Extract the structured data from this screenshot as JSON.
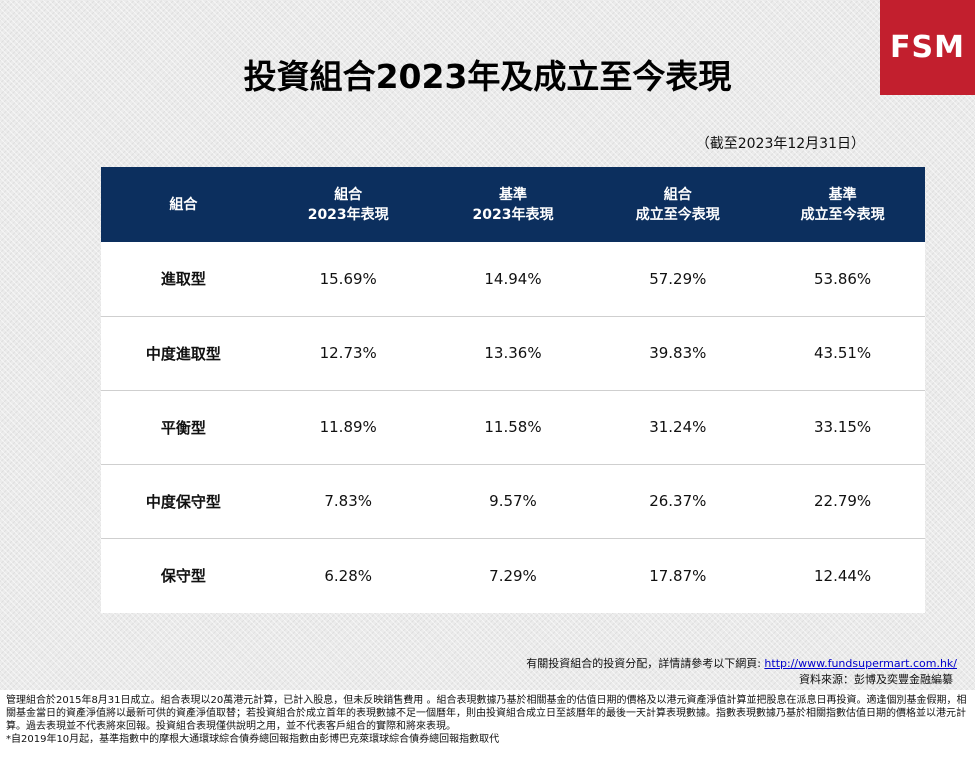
{
  "logo": "FSM",
  "title": "投資組合2023年及成立至今表現",
  "as_of": "（截至2023年12月31日）",
  "table": {
    "headers": [
      [
        "組合"
      ],
      [
        "組合",
        "2023年表現"
      ],
      [
        "基準",
        "2023年表現"
      ],
      [
        "組合",
        "成立至今表現"
      ],
      [
        "基準",
        "成立至今表現"
      ]
    ],
    "rows": [
      [
        "進取型",
        "15.69%",
        "14.94%",
        "57.29%",
        "53.86%"
      ],
      [
        "中度進取型",
        "12.73%",
        "13.36%",
        "39.83%",
        "43.51%"
      ],
      [
        "平衡型",
        "11.89%",
        "11.58%",
        "31.24%",
        "33.15%"
      ],
      [
        "中度保守型",
        "7.83%",
        "9.57%",
        "26.37%",
        "22.79%"
      ],
      [
        "保守型",
        "6.28%",
        "7.29%",
        "17.87%",
        "12.44%"
      ]
    ]
  },
  "reference": {
    "text": "有關投資組合的投資分配，詳情請參考以下網頁: ",
    "link": "http://www.fundsupermart.com.hk/"
  },
  "source": "資料來源：彭博及奕豐金融編纂",
  "footnotes": [
    "管理組合於2015年8月31日成立。組合表現以20萬港元計算，已計入股息，但未反映銷售費用 。組合表現數據乃基於相關基金的估值日期的價格及以港元資產淨值計算並把股息在派息日再投資。適逢個別基金假期，相關基金當日的資產淨值將以最新可供的資產淨值取替；若投資組合於成立首年的表現數據不足一個曆年，則由投資組合成立日至該曆年的最後一天計算表現數據。指數表現數據乃基於相關指數估值日期的價格並以港元計算。過去表現並不代表將來回報。投資組合表現僅供說明之用，並不代表客戶組合的實際和將來表現。",
    "*自2019年10月起，基準指數中的摩根大通環球綜合債券總回報指數由彭博巴克萊環球綜合債券總回報指數取代"
  ]
}
